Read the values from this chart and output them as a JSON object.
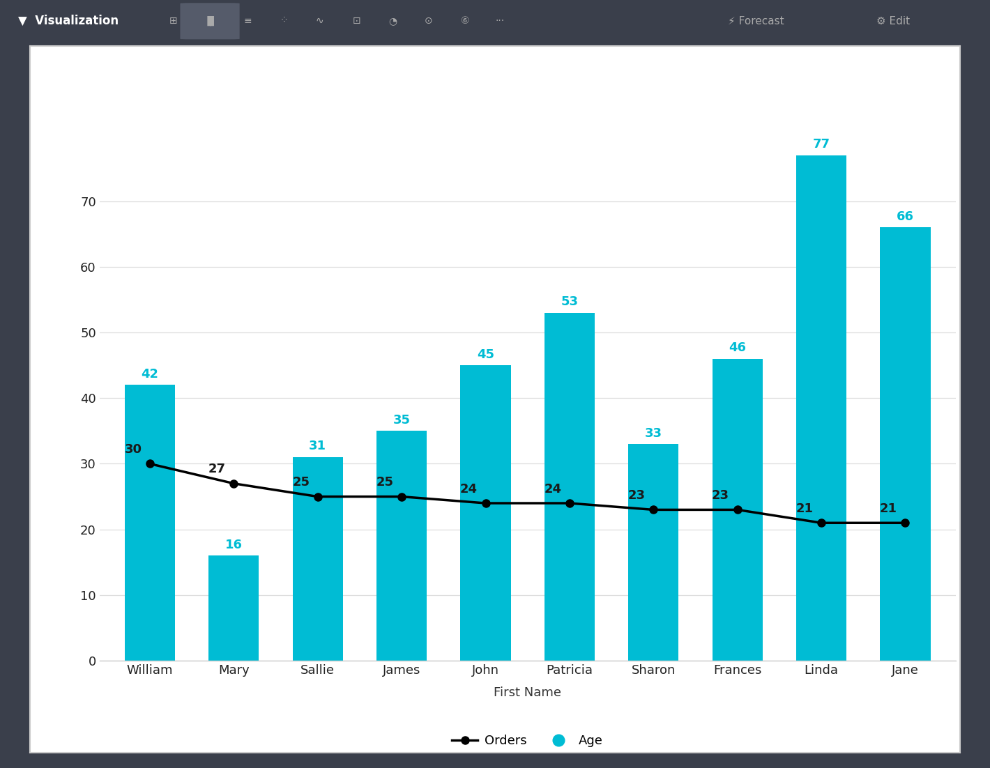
{
  "categories": [
    "William",
    "Mary",
    "Sallie",
    "James",
    "John",
    "Patricia",
    "Sharon",
    "Frances",
    "Linda",
    "Jane"
  ],
  "age_values": [
    42,
    16,
    31,
    35,
    45,
    53,
    33,
    46,
    77,
    66
  ],
  "orders_values": [
    30,
    27,
    25,
    25,
    24,
    24,
    23,
    23,
    21,
    21
  ],
  "bar_color": "#00BCD4",
  "line_color": "#000000",
  "marker_color": "#000000",
  "background_color": "#FFFFFF",
  "outer_background": "#3A3F4B",
  "toolbar_background": "#3A3F4B",
  "grid_color": "#DDDDDD",
  "age_label_color": "#00BCD4",
  "orders_label_color": "#1A1A1A",
  "xlabel": "First Name",
  "legend_orders": "Orders",
  "legend_age": "Age",
  "yticks": [
    0,
    10,
    20,
    30,
    40,
    50,
    60,
    70
  ],
  "ylim": [
    0,
    85
  ],
  "bar_width": 0.6
}
